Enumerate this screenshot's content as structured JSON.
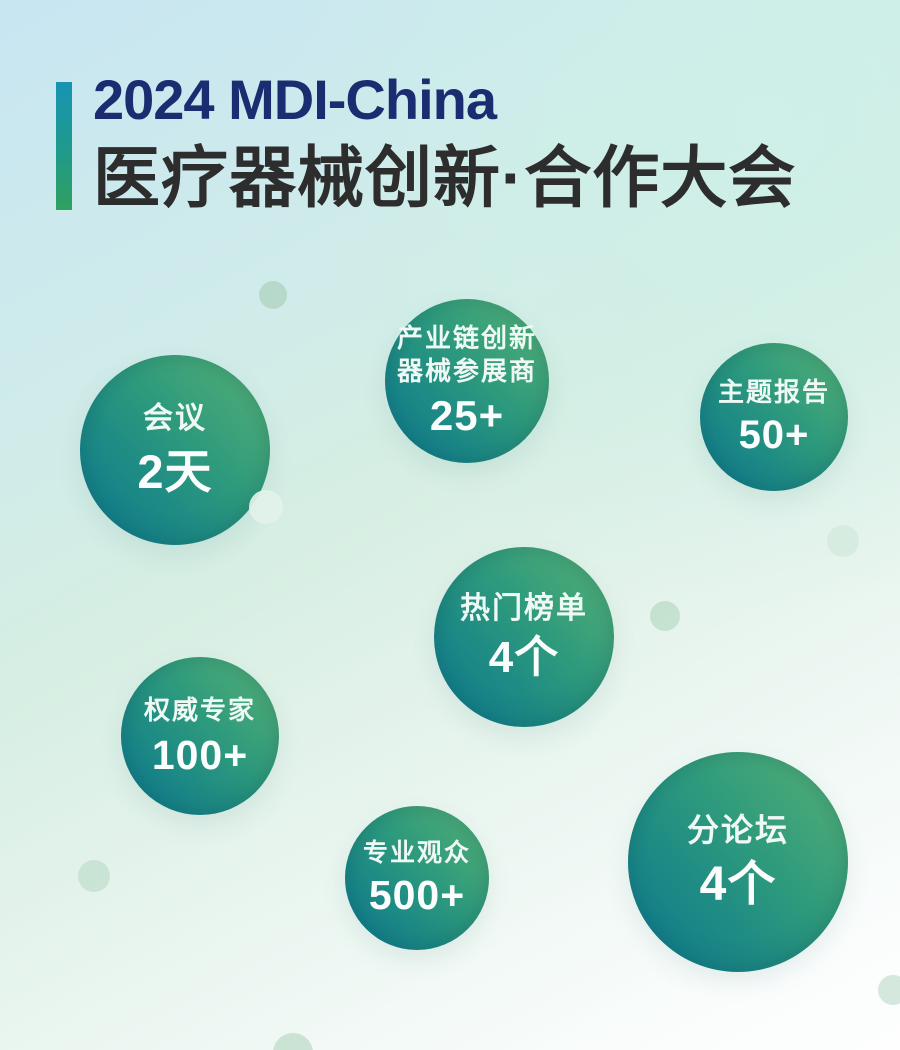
{
  "poster": {
    "header": {
      "title_en": "2024 MDI-China",
      "title_zh": "医疗器械创新·合作大会"
    },
    "bubbles": [
      {
        "id": "conference-days",
        "label1": "会议",
        "value": "2天"
      },
      {
        "id": "exhibitors",
        "label1": "产业链创新",
        "label2": "器械参展商",
        "value": "25+"
      },
      {
        "id": "keynote-reports",
        "label1": "主题报告",
        "value": "50+"
      },
      {
        "id": "hot-lists",
        "label1": "热门榜单",
        "value": "4个"
      },
      {
        "id": "experts",
        "label1": "权威专家",
        "value": "100+"
      },
      {
        "id": "professional-visitors",
        "label1": "专业观众",
        "value": "500+"
      },
      {
        "id": "sub-forums",
        "label1": "分论坛",
        "value": "4个"
      }
    ],
    "colors": {
      "title_en": "#1b2c71",
      "title_zh": "#2d2d2d",
      "accent_bar_top": "#1794b4",
      "accent_bar_bottom": "#2fa05f",
      "bubble_gradient_dark": "#0d7990",
      "bubble_gradient_light": "#58b175",
      "bubble_text": "#ffffff",
      "background_top_left": "#c8e6f2",
      "background_middle": "#d6eee3",
      "background_bottom": "#fdfefd"
    }
  }
}
